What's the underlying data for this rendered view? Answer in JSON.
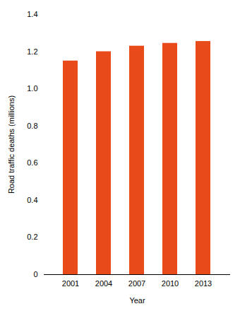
{
  "chart_data": {
    "type": "bar",
    "categories": [
      "2001",
      "2004",
      "2007",
      "2010",
      "2013"
    ],
    "values": [
      1.15,
      1.2,
      1.23,
      1.245,
      1.255
    ],
    "color": "#E84A1A",
    "xlabel": "Year",
    "ylabel": "Road traffic deaths (millions)",
    "ylim": [
      0,
      1.4
    ],
    "yticks": [
      0,
      0.2,
      0.4,
      0.6,
      0.8,
      {
        "value": 1.0,
        "label": "1.0"
      },
      1.2,
      1.4
    ],
    "grid": false
  }
}
